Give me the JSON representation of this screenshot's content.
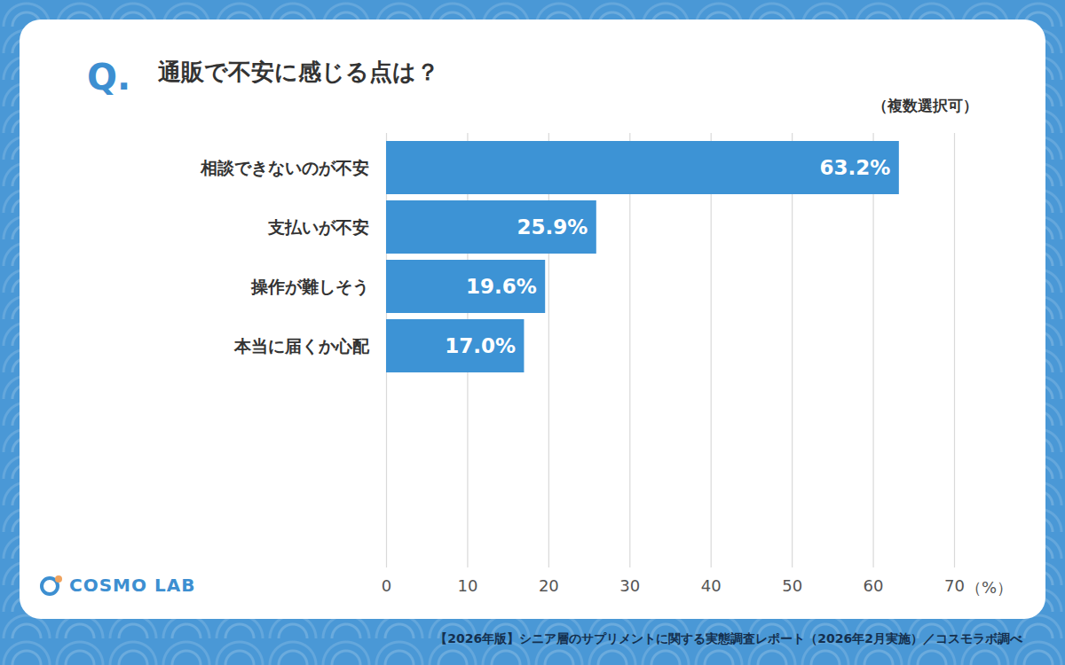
{
  "chart_data": {
    "type": "bar",
    "orientation": "horizontal",
    "title_prefix": "Q.",
    "title": "通販で不安に感じる点は？",
    "subtitle": "（複数選択可）",
    "x_label": "（%）",
    "categories": [
      "相談できないのが不安",
      "支払いが不安",
      "操作が難しそう",
      "本当に届くか心配"
    ],
    "values": [
      63.2,
      25.9,
      19.6,
      17.0
    ],
    "value_labels": [
      "63.2%",
      "25.9%",
      "19.6%",
      "17.0%"
    ],
    "data_labels": true,
    "color": "#3d93d5",
    "xlim": [
      0,
      70
    ],
    "xticks": [
      0,
      10,
      20,
      30,
      40,
      50,
      60,
      70
    ],
    "grid": true,
    "logo": "COSMO LAB",
    "caption": "【2026年版】シニア層のサプリメントに関する実態調査レポート（2026年2月実施）／コスモラボ調べ"
  }
}
